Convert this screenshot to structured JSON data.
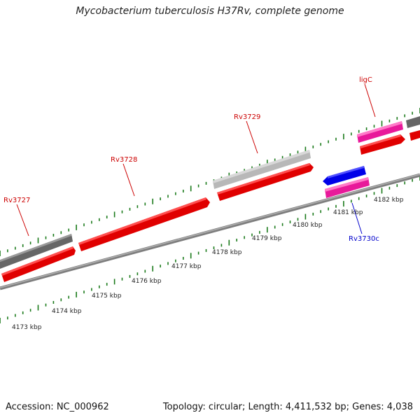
{
  "title": "Mycobacterium tuberculosis H37Rv, complete genome",
  "footer": {
    "accession": "Accession: NC_000962",
    "topology": "Topology: circular; Length: 4,411,532 bp; Genes: 4,038"
  },
  "ticks": [
    "4173 kbp",
    "4174 kbp",
    "4175 kbp",
    "4176 kbp",
    "4177 kbp",
    "4178 kbp",
    "4179 kbp",
    "4180 kbp",
    "4181 kbp",
    "4182 kbp"
  ],
  "genes": [
    {
      "name": "Rv3727",
      "color": "#cc0000"
    },
    {
      "name": "Rv3728",
      "color": "#cc0000"
    },
    {
      "name": "Rv3729",
      "color": "#cc0000"
    },
    {
      "name": "ligC",
      "color": "#cc0000"
    },
    {
      "name": "Rv3730c",
      "color": "#0000cc"
    }
  ],
  "colors": {
    "cds": "#ee0000",
    "gene_gray": "#6b6b6b",
    "gene_lightgray": "#bdbdbd",
    "rna_pink": "#e8199a",
    "reverse_blue": "#0000ee",
    "tick": "#1a7a1a",
    "backbone": "#8a8a8a"
  }
}
